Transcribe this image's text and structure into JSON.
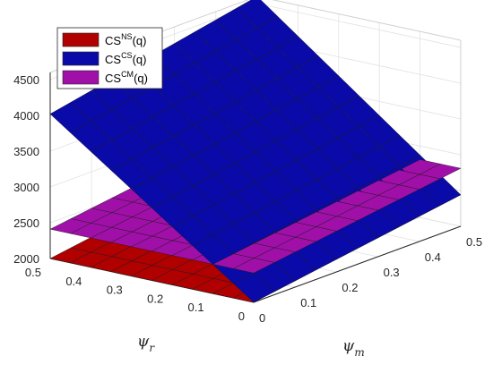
{
  "chart_data": {
    "type": "surface3d",
    "x_axis": {
      "symbol": "ψ",
      "subscript": "m",
      "ticks": [
        "0",
        "0.1",
        "0.2",
        "0.3",
        "0.4",
        "0.5"
      ],
      "range": [
        0,
        0.5
      ]
    },
    "y_axis": {
      "symbol": "ψ",
      "subscript": "r",
      "ticks": [
        "0",
        "0.1",
        "0.2",
        "0.3",
        "0.4",
        "0.5"
      ],
      "range": [
        0,
        0.5
      ]
    },
    "z_axis": {
      "ticks": [
        "2000",
        "2500",
        "3000",
        "3500",
        "4000",
        "4500"
      ],
      "range": [
        2000,
        4600
      ]
    },
    "grid": true,
    "legend_position": "top-left",
    "grid_points": [
      0,
      0.05,
      0.1,
      0.15,
      0.2,
      0.25,
      0.3,
      0.35,
      0.4,
      0.45,
      0.5
    ],
    "series": [
      {
        "name": "CS^NS(q)",
        "base": "CS",
        "sup": "NS",
        "suffix": "(q)",
        "color": "#b00000",
        "surface": {
          "kind": "bilinear",
          "z00": 2000,
          "z10": 2440,
          "z01": 2000,
          "z11": 2440
        }
      },
      {
        "name": "CS^CS(q)",
        "base": "CS",
        "sup": "CS",
        "suffix": "(q)",
        "color": "#0a0aa8",
        "surface": {
          "kind": "bilinear",
          "z00": 2000,
          "z10": 2440,
          "z01": 4020,
          "z11": 4600
        }
      },
      {
        "name": "CS^CM(q)",
        "base": "CS",
        "sup": "CM",
        "suffix": "(q)",
        "color": "#a010a8",
        "surface": {
          "kind": "bilinear",
          "z00": 2410,
          "z10": 2810,
          "z01": 2410,
          "z11": 2810
        }
      }
    ]
  }
}
